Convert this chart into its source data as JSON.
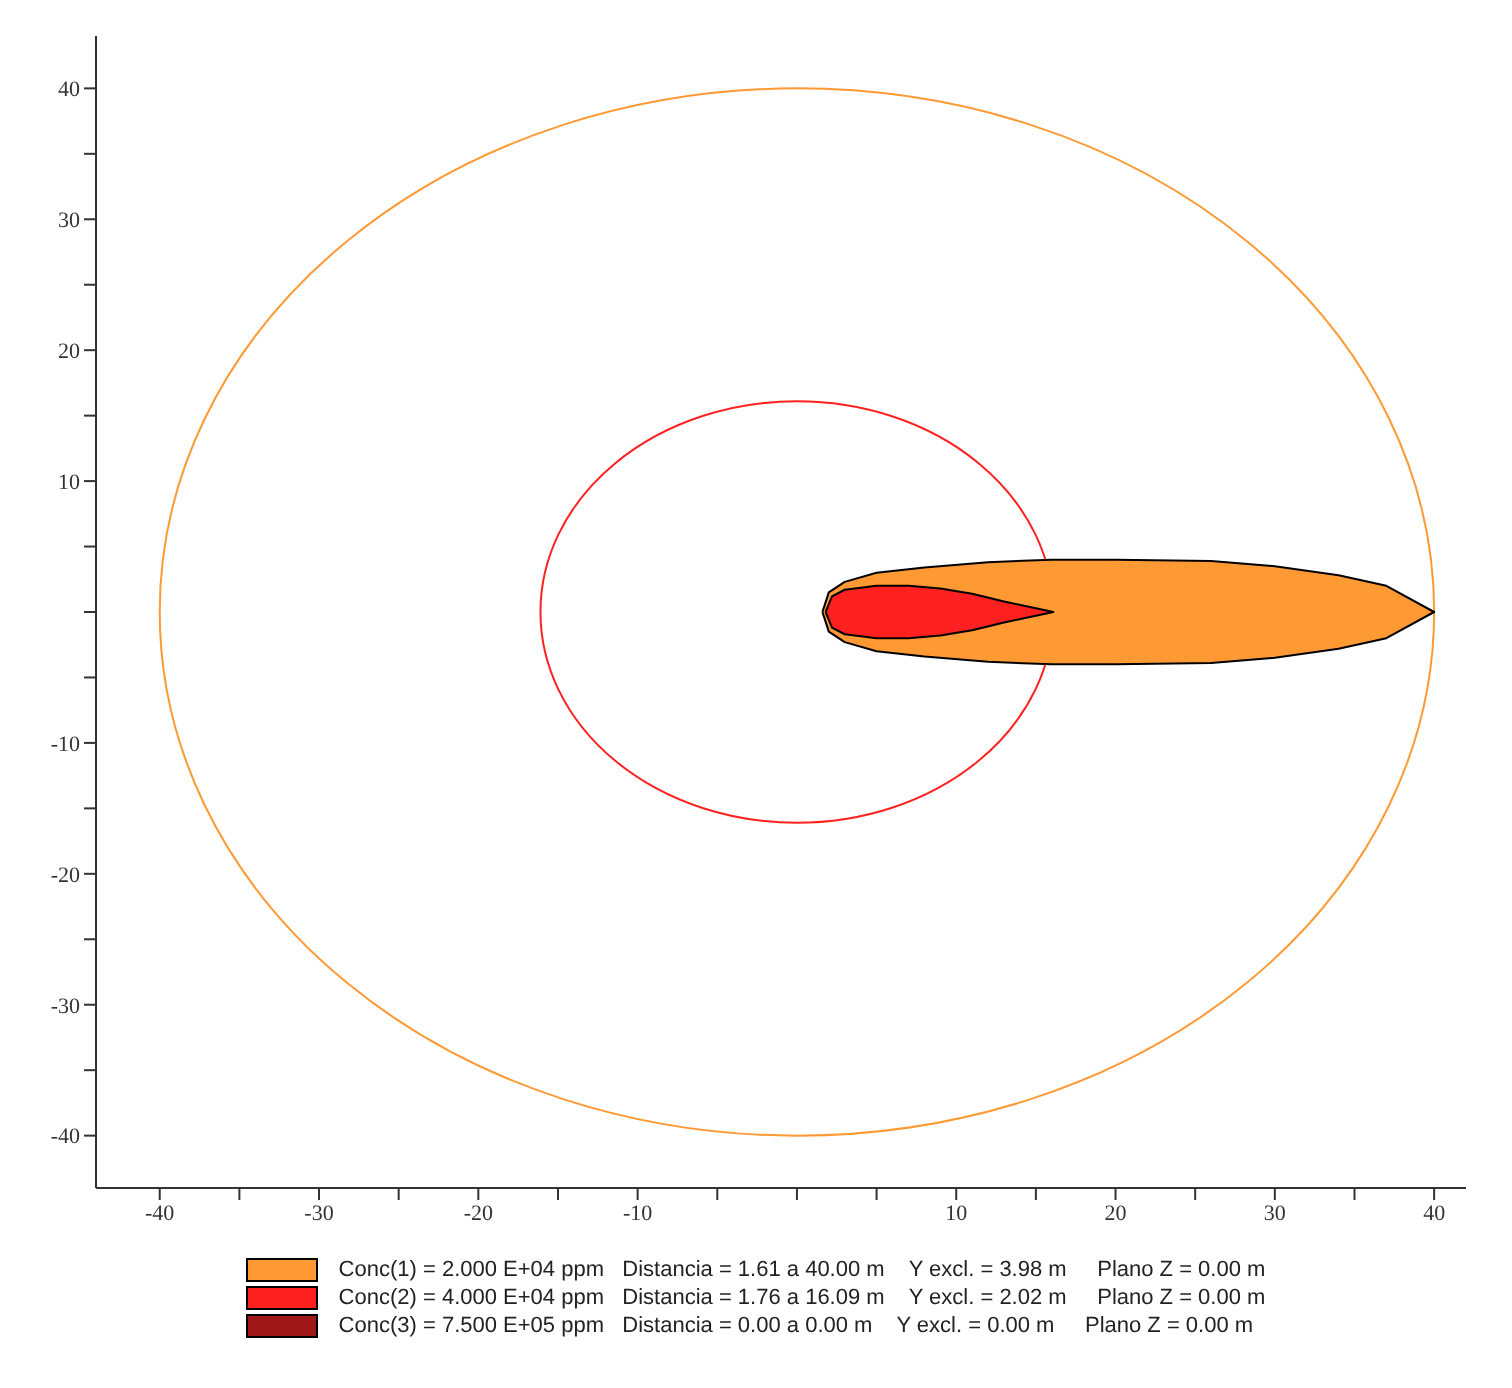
{
  "chart_data": {
    "type": "area",
    "grid": false,
    "legend": "bottom",
    "xlim": [
      -44,
      42
    ],
    "ylim": [
      -44,
      44
    ],
    "xticks": [
      -40,
      {
        "value": -35,
        "label": null
      },
      -30,
      {
        "value": -25,
        "label": null
      },
      -20,
      {
        "value": -15,
        "label": null
      },
      -10,
      {
        "value": -5,
        "label": null
      },
      {
        "value": 0,
        "label": null
      },
      {
        "value": 5,
        "label": null
      },
      10,
      {
        "value": 15,
        "label": null
      },
      20,
      {
        "value": 25,
        "label": null
      },
      30,
      {
        "value": 35,
        "label": null
      },
      40
    ],
    "yticks": [
      -40,
      {
        "value": -35,
        "label": null
      },
      -30,
      {
        "value": -25,
        "label": null
      },
      -20,
      {
        "value": -15,
        "label": null
      },
      -10,
      {
        "value": -5,
        "label": null
      },
      {
        "value": 0,
        "label": null
      },
      {
        "value": 5,
        "label": null
      },
      10,
      {
        "value": 15,
        "label": null
      },
      20,
      {
        "value": 25,
        "label": null
      },
      30,
      {
        "value": 35,
        "label": null
      },
      40
    ],
    "series": [
      {
        "name": "Conc(1) = 2.000 E+04 ppm   Distancia = 1.61 a 40.00 m    Y excl. = 3.98 m     Plano Z = 0.00 m",
        "color": "#ff9933",
        "x": [
          1.6,
          2,
          3,
          5,
          8,
          12,
          16,
          20,
          26,
          30,
          34,
          37,
          40,
          37,
          34,
          30,
          26,
          20,
          16,
          12,
          8,
          5,
          3,
          2,
          1.6
        ],
        "values": [
          0,
          1.5,
          2.3,
          3,
          3.4,
          3.8,
          4,
          4,
          3.9,
          3.5,
          2.8,
          2,
          0,
          -2,
          -2.8,
          -3.5,
          -3.9,
          -4,
          -4,
          -3.8,
          -3.4,
          -3,
          -2.3,
          -1.5,
          0
        ]
      },
      {
        "name": "Conc(2) = 4.000 E+04 ppm   Distancia = 1.76 a 16.09 m    Y excl. = 2.02 m     Plano Z = 0.00 m",
        "color": "#ff2020",
        "x": [
          1.8,
          2.2,
          3,
          5,
          7,
          9,
          11,
          13,
          16.1,
          13,
          11,
          9,
          7,
          5,
          3,
          2.2,
          1.8
        ],
        "values": [
          0,
          1.2,
          1.7,
          2,
          2,
          1.8,
          1.4,
          0.8,
          0,
          -0.8,
          -1.4,
          -1.8,
          -2,
          -2,
          -1.7,
          -1.2,
          0
        ]
      },
      {
        "name": "Conc(3) = 7.500 E+05 ppm   Distancia = 0.00 a 0.00 m    Y excl. = 0.00 m     Plano Z = 0.00 m",
        "color": "#a01818"
      }
    ]
  }
}
